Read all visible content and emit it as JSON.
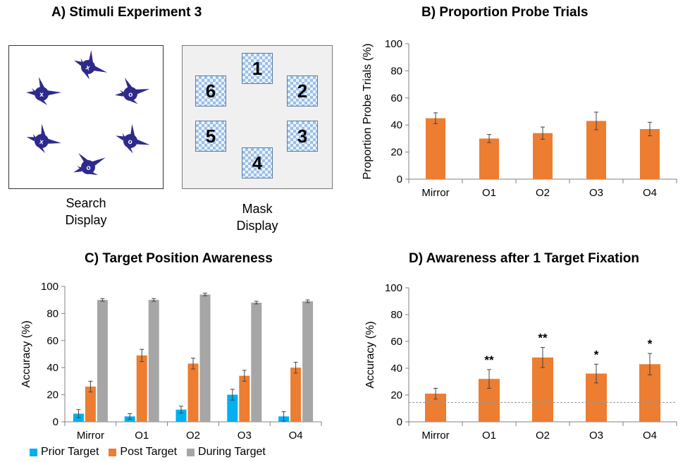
{
  "panelA": {
    "title": "A) Stimuli Experiment 3",
    "search_caption_1": "Search",
    "search_caption_2": "Display",
    "mask_caption_1": "Mask",
    "mask_caption_2": "Display",
    "stimulus_labels": [
      "x",
      "o",
      "o",
      "o",
      "x",
      "x"
    ],
    "mask_numbers": [
      "1",
      "2",
      "3",
      "4",
      "5",
      "6"
    ],
    "stimulus_color": "#2e2a8c",
    "tile_color": "#9cc0e6"
  },
  "colors": {
    "orange": "#ed7d31",
    "blue": "#00b0f0",
    "gray": "#a6a6a6",
    "axis": "#808080"
  },
  "chart_data": [
    {
      "id": "B",
      "type": "bar",
      "title": "B) Proportion Probe Trials",
      "ylabel": "Proportion Probe Trials (%)",
      "xlabel": "",
      "categories": [
        "Mirror",
        "O1",
        "O2",
        "O3",
        "O4"
      ],
      "yticks": [
        "0",
        "20",
        "40",
        "60",
        "80",
        "100"
      ],
      "ylim": [
        0,
        100
      ],
      "grid": false,
      "series": [
        {
          "values": [
            45,
            30,
            34,
            43,
            37
          ],
          "errors": [
            4,
            3,
            4.5,
            6.5,
            5
          ],
          "color": "#ed7d31"
        }
      ]
    },
    {
      "id": "C",
      "type": "bar",
      "title": "C) Target Position Awareness",
      "ylabel": "Accuracy (%)",
      "xlabel": "",
      "categories": [
        "Mirror",
        "O1",
        "O2",
        "O3",
        "O4"
      ],
      "yticks": [
        "0",
        "20",
        "40",
        "60",
        "80",
        "100"
      ],
      "ylim": [
        0,
        100
      ],
      "grid": false,
      "legend_position": "bottom",
      "series": [
        {
          "name": "Prior Target",
          "values": [
            6,
            4,
            9,
            20,
            4
          ],
          "errors": [
            3,
            2,
            2.5,
            4,
            3.5
          ],
          "color": "#00b0f0"
        },
        {
          "name": "Post Target",
          "values": [
            26,
            49,
            43,
            34,
            40
          ],
          "errors": [
            4,
            4.5,
            4,
            4,
            4
          ],
          "color": "#ed7d31"
        },
        {
          "name": "During Target",
          "values": [
            90,
            90,
            94,
            88,
            89
          ],
          "errors": [
            1,
            1,
            1,
            1,
            1
          ],
          "color": "#a6a6a6"
        }
      ]
    },
    {
      "id": "D",
      "type": "bar",
      "title": "D) Awareness after 1 Target Fixation",
      "ylabel": "Accuracy (%)",
      "xlabel": "",
      "categories": [
        "Mirror",
        "O1",
        "O2",
        "O3",
        "O4"
      ],
      "yticks": [
        "0",
        "20",
        "40",
        "60",
        "80",
        "100"
      ],
      "ylim": [
        0,
        100
      ],
      "grid": false,
      "reference_line": 14.5,
      "series": [
        {
          "values": [
            21,
            32,
            48,
            36,
            43
          ],
          "errors": [
            4,
            7,
            7.5,
            7,
            8
          ],
          "color": "#ed7d31",
          "annotations": [
            "",
            "**",
            "**",
            "*",
            "*"
          ]
        }
      ]
    }
  ]
}
